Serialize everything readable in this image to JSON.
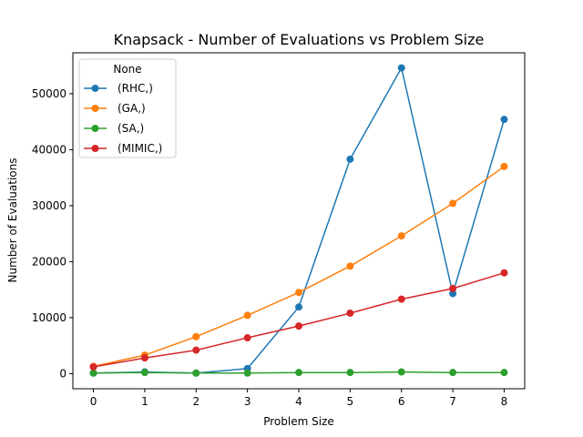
{
  "chart_data": {
    "type": "line",
    "title": "Knapsack - Number of Evaluations vs Problem Size",
    "xlabel": "Problem Size",
    "ylabel": "Number of Evaluations",
    "x": [
      0,
      1,
      2,
      3,
      4,
      5,
      6,
      7,
      8
    ],
    "xlim": [
      -0.4,
      8.4
    ],
    "ylim": [
      -2700,
      57300
    ],
    "xticks": [
      0,
      1,
      2,
      3,
      4,
      5,
      6,
      7,
      8
    ],
    "yticks": [
      0,
      10000,
      20000,
      30000,
      40000,
      50000
    ],
    "grid": false,
    "legend": {
      "title": "None",
      "placement": "top-left"
    },
    "series": [
      {
        "name": "(RHC,)",
        "color": "#1f77b4",
        "values": [
          100,
          300,
          100,
          900,
          11900,
          38300,
          54600,
          14300,
          45400
        ]
      },
      {
        "name": "(GA,)",
        "color": "#ff7f0e",
        "values": [
          1300,
          3300,
          6600,
          10400,
          14500,
          19200,
          24600,
          30400,
          37000
        ]
      },
      {
        "name": "(SA,)",
        "color": "#2ca02c",
        "values": [
          100,
          200,
          100,
          100,
          200,
          200,
          300,
          200,
          200
        ]
      },
      {
        "name": "(MIMIC,)",
        "color": "#d62728",
        "values": [
          1200,
          2800,
          4200,
          6400,
          8500,
          10800,
          13300,
          15200,
          18000
        ]
      }
    ]
  }
}
